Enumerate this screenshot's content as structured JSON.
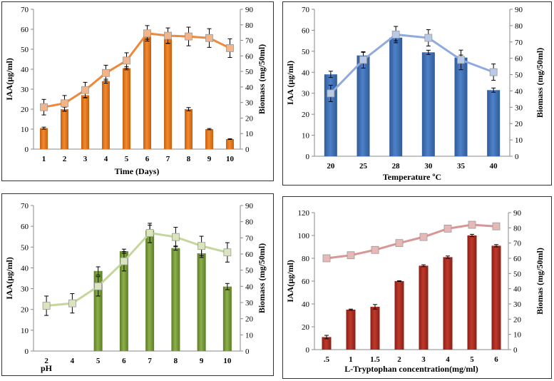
{
  "chart_data": [
    {
      "type": "bar",
      "id": "p1",
      "xlabel": "Time (Days)",
      "ylabel": "IAA(µg/ml)",
      "y2label": "Biomass (mg/50ml)",
      "ylim": [
        0,
        70
      ],
      "yticks": [
        0,
        10,
        20,
        30,
        40,
        50,
        60,
        70
      ],
      "y2lim": [
        0,
        90
      ],
      "y2ticks": [
        0,
        10,
        20,
        30,
        40,
        50,
        60,
        70,
        80,
        90
      ],
      "categories": [
        "1",
        "2",
        "3",
        "4",
        "5",
        "6",
        "7",
        "8",
        "9",
        "10"
      ],
      "series": [
        {
          "name": "IAA",
          "kind": "bar",
          "axis": "left",
          "values": [
            10.5,
            20,
            27,
            34,
            40.5,
            57,
            55,
            20,
            10,
            5
          ],
          "err": [
            0.5,
            1,
            1.2,
            1,
            0.8,
            2,
            2,
            0.8,
            0.3,
            0.2
          ]
        },
        {
          "name": "Biomass",
          "kind": "line",
          "axis": "right",
          "values": [
            27,
            29.5,
            38,
            49,
            57,
            74.5,
            73,
            72.5,
            71.5,
            65
          ],
          "err": [
            5,
            5,
            5,
            5,
            5,
            5,
            5,
            6,
            6,
            6
          ]
        }
      ],
      "colors": {
        "bar": "#f28a2e",
        "bar_dark": "#c85f10",
        "line": "#f0883a",
        "marker": "#f3b48a"
      }
    },
    {
      "type": "bar",
      "id": "p2",
      "xlabel": "Temperature ºC",
      "ylabel": "IAA (µg/ml)",
      "y2label": "Biomass (mg/50ml)",
      "ylim": [
        0,
        70
      ],
      "yticks": [
        0,
        10,
        20,
        30,
        40,
        50,
        60,
        70
      ],
      "y2lim": [
        0,
        90
      ],
      "y2ticks": [
        0,
        10,
        20,
        30,
        40,
        50,
        60,
        70,
        80,
        90
      ],
      "categories": [
        "20",
        "25",
        "28",
        "30",
        "35",
        "40"
      ],
      "series": [
        {
          "name": "IAA",
          "kind": "bar",
          "axis": "left",
          "values": [
            39,
            48,
            56.5,
            49.5,
            47,
            31.5
          ],
          "err": [
            1.5,
            1.5,
            1.5,
            1,
            1.2,
            1
          ]
        },
        {
          "name": "Biomass",
          "kind": "line",
          "axis": "right",
          "values": [
            38.5,
            59,
            74.5,
            72.5,
            59,
            51.5
          ],
          "err": [
            5,
            5,
            5,
            5,
            6,
            5
          ]
        }
      ],
      "colors": {
        "bar": "#4f81c8",
        "bar_dark": "#2e5b9a",
        "line": "#8faadc",
        "marker": "#b9c9e8"
      }
    },
    {
      "type": "bar",
      "id": "p3",
      "xlabel": "pH",
      "ylabel": "IAA(µg/ml)",
      "y2label": "Biomass (mg/50ml)",
      "ylim": [
        0,
        70
      ],
      "yticks": [
        0,
        10,
        20,
        30,
        40,
        50,
        60,
        70
      ],
      "y2lim": [
        0,
        90
      ],
      "y2ticks": [
        0,
        10,
        20,
        30,
        40,
        50,
        60,
        70,
        80,
        90
      ],
      "categories": [
        "2",
        "4",
        "5",
        "6",
        "7",
        "8",
        "9",
        "10"
      ],
      "series": [
        {
          "name": "IAA",
          "kind": "bar",
          "axis": "left",
          "values": [
            0,
            0,
            38.5,
            48,
            58,
            49.5,
            47,
            31
          ],
          "err": [
            0,
            0,
            2,
            1,
            2.5,
            1,
            2,
            1.5
          ]
        },
        {
          "name": "Biomass",
          "kind": "line",
          "axis": "right",
          "values": [
            28,
            29.5,
            40,
            55.5,
            73,
            70.5,
            65,
            61
          ],
          "err": [
            6,
            6,
            6,
            6,
            6,
            6,
            6,
            6
          ]
        }
      ],
      "colors": {
        "bar": "#8db04a",
        "bar_dark": "#5c7d26",
        "line": "#c4d79b",
        "marker": "#d8e5bd"
      }
    },
    {
      "type": "bar",
      "id": "p4",
      "xlabel": "L-Tryptophan  concentration(mg/ml)",
      "ylabel": "IAA(µg/ml)",
      "y2label": "Biomas (mg/50ml)",
      "ylim": [
        0,
        120
      ],
      "yticks": [
        0,
        20,
        40,
        60,
        80,
        100,
        120
      ],
      "y2lim": [
        0,
        90
      ],
      "y2ticks": [
        0,
        10,
        20,
        30,
        40,
        50,
        60,
        70,
        80,
        90
      ],
      "categories": [
        ".5",
        "1",
        "1.5",
        "2",
        "3",
        "4",
        "5",
        "6"
      ],
      "series": [
        {
          "name": "IAA",
          "kind": "bar",
          "axis": "left",
          "values": [
            11,
            35,
            37.5,
            60,
            73.5,
            81,
            100,
            91
          ],
          "err": [
            1.5,
            0.5,
            2,
            0.3,
            0.8,
            1,
            1,
            1
          ]
        },
        {
          "name": "Biomass",
          "kind": "line",
          "axis": "right",
          "values": [
            60,
            62,
            65.5,
            70,
            74,
            79.5,
            82,
            81
          ],
          "err": [
            2,
            2,
            2,
            2,
            2,
            2,
            2,
            2
          ]
        }
      ],
      "colors": {
        "bar": "#c0392b",
        "bar_dark": "#8a1f16",
        "line": "#d99694",
        "marker": "#e6b8b7"
      }
    }
  ]
}
